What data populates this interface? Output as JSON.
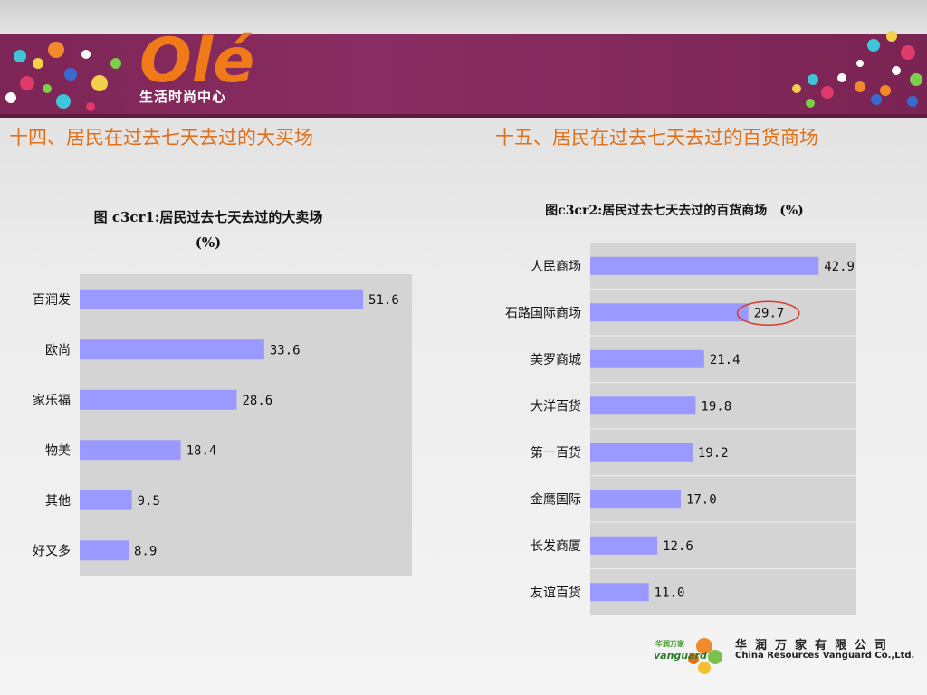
{
  "header": {
    "logo_text": "Olé",
    "logo_subtitle": "生活时尚中心",
    "section_left": "十四、居民在过去七天去过的大买场",
    "section_right": "十五、居民在过去七天去过的百货商场"
  },
  "colors": {
    "banner": "#8a2d62",
    "heading": "#e0701a",
    "bar": "#9999ff",
    "plot_bg": "#d4d4d4",
    "highlight_ring": "#d63a2a"
  },
  "chart_data": [
    {
      "type": "bar",
      "orientation": "horizontal",
      "title_line1": "图 c3cr1:居民过去七天去过的大卖场",
      "title_line2": "(%)",
      "categories": [
        "百润发",
        "欧尚",
        "家乐福",
        "物美",
        "其他",
        "好又多"
      ],
      "values": [
        51.6,
        33.6,
        28.6,
        18.4,
        9.5,
        8.9
      ],
      "value_labels": [
        "51.6",
        "33.6",
        "28.6",
        "18.4",
        "9.5",
        "8.9"
      ],
      "xlim": [
        0,
        60
      ],
      "grid": false
    },
    {
      "type": "bar",
      "orientation": "horizontal",
      "title": "图c3cr2:居民过去七天去过的百货商场　(%)",
      "categories": [
        "人民商场",
        "石路国际商场",
        "美罗商城",
        "大洋百货",
        "第一百货",
        "金鹰国际",
        "长发商厦",
        "友谊百货"
      ],
      "values": [
        42.9,
        29.7,
        21.4,
        19.8,
        19.2,
        17.0,
        12.6,
        11.0
      ],
      "value_labels": [
        "42.9",
        "29.7",
        "21.4",
        "19.8",
        "19.2",
        "17.0",
        "12.6",
        "11.0"
      ],
      "xlim": [
        0,
        50
      ],
      "grid": true,
      "highlighted": "石路国际商场"
    }
  ],
  "footer": {
    "brand_cn_small": "华润万家",
    "brand_en_small": "vanguard",
    "company_cn": "华润万家有限公司",
    "company_en": "China Resources Vanguard Co.,Ltd."
  }
}
